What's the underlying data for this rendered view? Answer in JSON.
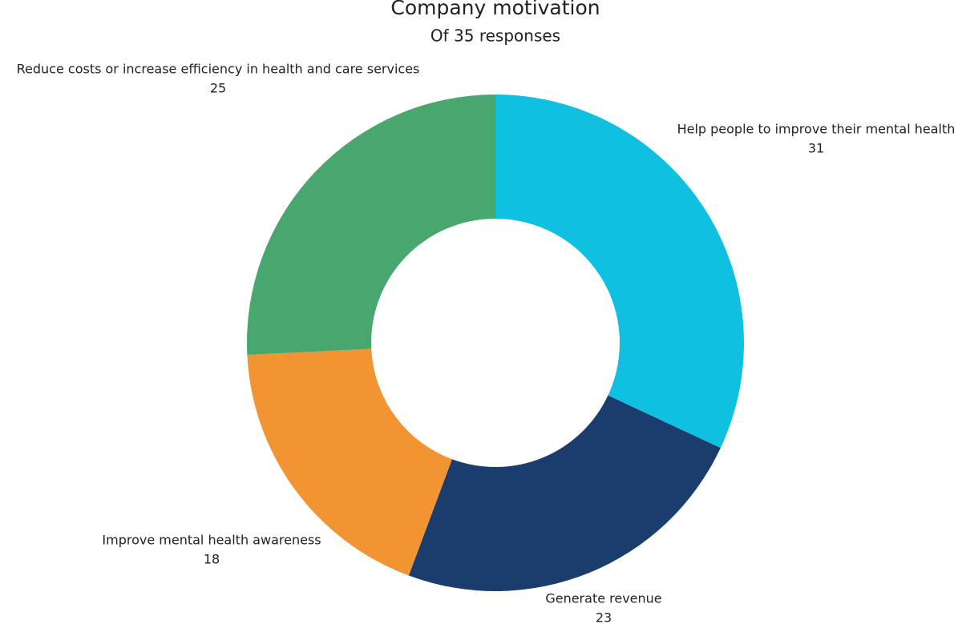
{
  "chart_data": {
    "type": "donut",
    "title": "Company motivation",
    "subtitle": "Of 35 responses",
    "categories": [
      "Help people to improve their mental health",
      "Generate revenue",
      "Improve mental health awareness",
      "Reduce costs or increase efficiency in health and care services"
    ],
    "values": [
      31,
      23,
      18,
      25
    ],
    "colors": [
      "#0fc0e0",
      "#1b3d6e",
      "#f29432",
      "#48a76e"
    ]
  }
}
